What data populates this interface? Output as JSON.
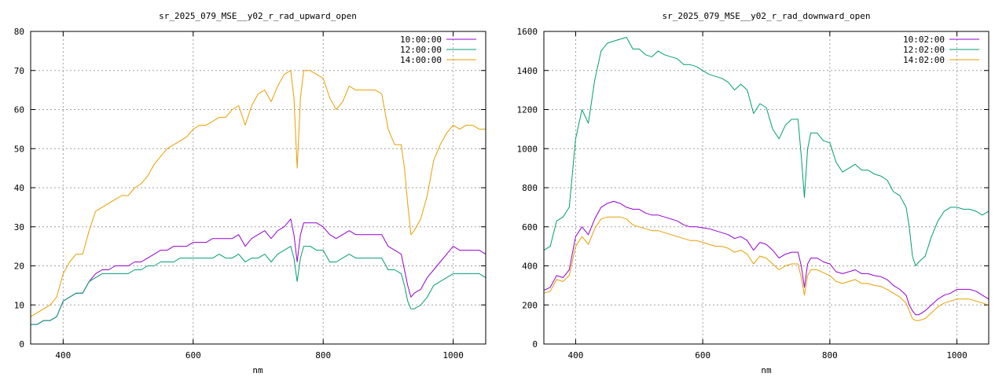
{
  "chart_data": [
    {
      "type": "line",
      "title": "sr_2025_079_MSE__y02_r_rad_upward_open",
      "xlabel": "nm",
      "ylabel": "",
      "xlim": [
        350,
        1050
      ],
      "ylim": [
        0,
        80
      ],
      "xticks": [
        "400",
        "600",
        "800",
        "1000"
      ],
      "yticks": [
        "0",
        "10",
        "20",
        "30",
        "40",
        "50",
        "60",
        "70",
        "80"
      ],
      "grid": true,
      "legend_position": "top-right",
      "series": [
        {
          "name": "10:00:00",
          "color": "#9400d3",
          "x": [
            350,
            360,
            370,
            380,
            390,
            400,
            410,
            420,
            430,
            440,
            450,
            460,
            470,
            480,
            490,
            500,
            510,
            520,
            530,
            540,
            550,
            560,
            570,
            580,
            590,
            600,
            610,
            620,
            630,
            640,
            650,
            660,
            670,
            680,
            690,
            700,
            710,
            720,
            730,
            740,
            750,
            755,
            760,
            765,
            770,
            780,
            790,
            800,
            810,
            820,
            830,
            840,
            850,
            860,
            870,
            880,
            890,
            900,
            910,
            920,
            925,
            930,
            935,
            940,
            950,
            960,
            970,
            980,
            990,
            1000,
            1010,
            1020,
            1030,
            1040,
            1050
          ],
          "values": [
            5,
            5,
            6,
            6,
            7,
            11,
            12,
            13,
            13,
            16,
            18,
            19,
            19,
            20,
            20,
            20,
            21,
            21,
            22,
            23,
            24,
            24,
            25,
            25,
            25,
            26,
            26,
            26,
            27,
            27,
            27,
            27,
            28,
            25,
            27,
            28,
            29,
            27,
            29,
            30,
            32,
            28,
            21,
            28,
            31,
            31,
            31,
            30,
            28,
            27,
            28,
            29,
            28,
            28,
            28,
            28,
            28,
            25,
            24,
            23,
            19,
            15,
            12,
            13,
            14,
            17,
            19,
            21,
            23,
            25,
            24,
            24,
            24,
            24,
            23
          ]
        },
        {
          "name": "12:00:00",
          "color": "#009e73",
          "x": [
            350,
            360,
            370,
            380,
            390,
            400,
            410,
            420,
            430,
            440,
            450,
            460,
            470,
            480,
            490,
            500,
            510,
            520,
            530,
            540,
            550,
            560,
            570,
            580,
            590,
            600,
            610,
            620,
            630,
            640,
            650,
            660,
            670,
            680,
            690,
            700,
            710,
            720,
            730,
            740,
            750,
            755,
            760,
            765,
            770,
            780,
            790,
            800,
            810,
            820,
            830,
            840,
            850,
            860,
            870,
            880,
            890,
            900,
            910,
            920,
            925,
            930,
            935,
            940,
            950,
            960,
            970,
            980,
            990,
            1000,
            1010,
            1020,
            1030,
            1040,
            1050
          ],
          "values": [
            5,
            5,
            6,
            6,
            7,
            11,
            12,
            13,
            13,
            16,
            17,
            18,
            18,
            18,
            18,
            18,
            19,
            19,
            20,
            20,
            21,
            21,
            21,
            22,
            22,
            22,
            22,
            22,
            22,
            23,
            22,
            22,
            23,
            21,
            22,
            22,
            23,
            21,
            23,
            24,
            25,
            22,
            16,
            22,
            25,
            25,
            24,
            24,
            21,
            21,
            22,
            23,
            22,
            22,
            22,
            22,
            22,
            19,
            19,
            18,
            15,
            11,
            9,
            9,
            10,
            12,
            15,
            16,
            17,
            18,
            18,
            18,
            18,
            18,
            17
          ]
        },
        {
          "name": "14:00:00",
          "color": "#e69f00",
          "x": [
            350,
            360,
            370,
            380,
            390,
            400,
            410,
            420,
            430,
            440,
            450,
            460,
            470,
            480,
            490,
            500,
            510,
            520,
            530,
            540,
            550,
            560,
            570,
            580,
            590,
            600,
            610,
            620,
            630,
            640,
            650,
            660,
            670,
            680,
            690,
            700,
            710,
            720,
            730,
            740,
            750,
            755,
            760,
            765,
            770,
            780,
            790,
            800,
            810,
            820,
            830,
            840,
            850,
            860,
            870,
            880,
            890,
            900,
            910,
            920,
            925,
            930,
            935,
            940,
            950,
            960,
            970,
            980,
            990,
            1000,
            1010,
            1020,
            1030,
            1040,
            1050
          ],
          "values": [
            7,
            8,
            9,
            10,
            12,
            18,
            21,
            23,
            23,
            29,
            34,
            35,
            36,
            37,
            38,
            38,
            40,
            41,
            43,
            46,
            48,
            50,
            51,
            52,
            53,
            55,
            56,
            56,
            57,
            58,
            58,
            60,
            61,
            56,
            61,
            64,
            65,
            62,
            66,
            69,
            70,
            63,
            45,
            63,
            70,
            70,
            69,
            68,
            63,
            60,
            62,
            66,
            65,
            65,
            65,
            65,
            64,
            55,
            51,
            51,
            45,
            36,
            28,
            29,
            32,
            38,
            47,
            51,
            54,
            56,
            55,
            56,
            56,
            55,
            55
          ]
        }
      ]
    },
    {
      "type": "line",
      "title": "sr_2025_079_MSE__y02_r_rad_downward_open",
      "xlabel": "nm",
      "ylabel": "",
      "xlim": [
        350,
        1050
      ],
      "ylim": [
        0,
        1600
      ],
      "xticks": [
        "400",
        "600",
        "800",
        "1000"
      ],
      "yticks": [
        "0",
        "200",
        "400",
        "600",
        "800",
        "1000",
        "1200",
        "1400",
        "1600"
      ],
      "grid": true,
      "legend_position": "top-right",
      "series": [
        {
          "name": "10:02:00",
          "color": "#9400d3",
          "x": [
            350,
            360,
            370,
            380,
            390,
            400,
            410,
            420,
            430,
            440,
            450,
            460,
            470,
            480,
            490,
            500,
            510,
            520,
            530,
            540,
            550,
            560,
            570,
            580,
            590,
            600,
            610,
            620,
            630,
            640,
            650,
            660,
            670,
            680,
            690,
            700,
            710,
            720,
            730,
            740,
            750,
            755,
            760,
            765,
            770,
            780,
            790,
            800,
            810,
            820,
            830,
            840,
            850,
            860,
            870,
            880,
            890,
            900,
            910,
            920,
            925,
            930,
            935,
            940,
            950,
            960,
            970,
            980,
            990,
            1000,
            1010,
            1020,
            1030,
            1040,
            1050
          ],
          "values": [
            275,
            290,
            350,
            340,
            380,
            550,
            600,
            560,
            640,
            700,
            720,
            730,
            720,
            700,
            690,
            690,
            670,
            660,
            660,
            650,
            640,
            630,
            610,
            600,
            600,
            595,
            590,
            580,
            570,
            560,
            540,
            550,
            530,
            480,
            520,
            510,
            480,
            440,
            460,
            470,
            470,
            400,
            290,
            410,
            440,
            440,
            420,
            410,
            370,
            360,
            370,
            380,
            360,
            360,
            350,
            345,
            330,
            300,
            280,
            250,
            200,
            170,
            150,
            150,
            170,
            200,
            230,
            250,
            260,
            280,
            280,
            280,
            270,
            250,
            230
          ]
        },
        {
          "name": "12:02:00",
          "color": "#009e73",
          "x": [
            350,
            360,
            370,
            380,
            390,
            400,
            410,
            420,
            430,
            440,
            450,
            460,
            470,
            480,
            490,
            500,
            510,
            520,
            530,
            540,
            550,
            560,
            570,
            580,
            590,
            600,
            610,
            620,
            630,
            640,
            650,
            660,
            670,
            680,
            690,
            700,
            710,
            720,
            730,
            740,
            750,
            755,
            760,
            765,
            770,
            780,
            790,
            800,
            810,
            820,
            830,
            840,
            850,
            860,
            870,
            880,
            890,
            900,
            910,
            920,
            925,
            930,
            935,
            940,
            950,
            960,
            970,
            980,
            990,
            1000,
            1010,
            1020,
            1030,
            1040,
            1050
          ],
          "values": [
            480,
            500,
            630,
            650,
            700,
            1050,
            1200,
            1130,
            1350,
            1500,
            1540,
            1550,
            1560,
            1570,
            1510,
            1510,
            1480,
            1470,
            1500,
            1480,
            1470,
            1460,
            1430,
            1430,
            1420,
            1400,
            1380,
            1370,
            1360,
            1340,
            1300,
            1330,
            1300,
            1180,
            1230,
            1210,
            1100,
            1050,
            1120,
            1150,
            1150,
            960,
            750,
            1000,
            1080,
            1080,
            1040,
            1030,
            930,
            880,
            900,
            920,
            890,
            890,
            870,
            860,
            840,
            780,
            760,
            700,
            600,
            450,
            400,
            420,
            450,
            550,
            630,
            680,
            700,
            700,
            690,
            690,
            680,
            660,
            680
          ]
        },
        {
          "name": "14:02:00",
          "color": "#e69f00",
          "x": [
            350,
            360,
            370,
            380,
            390,
            400,
            410,
            420,
            430,
            440,
            450,
            460,
            470,
            480,
            490,
            500,
            510,
            520,
            530,
            540,
            550,
            560,
            570,
            580,
            590,
            600,
            610,
            620,
            630,
            640,
            650,
            660,
            670,
            680,
            690,
            700,
            710,
            720,
            730,
            740,
            750,
            755,
            760,
            765,
            770,
            780,
            790,
            800,
            810,
            820,
            830,
            840,
            850,
            860,
            870,
            880,
            890,
            900,
            910,
            920,
            925,
            930,
            935,
            940,
            950,
            960,
            970,
            980,
            990,
            1000,
            1010,
            1020,
            1030,
            1040,
            1050
          ],
          "values": [
            260,
            270,
            330,
            320,
            350,
            500,
            550,
            510,
            590,
            640,
            650,
            650,
            650,
            640,
            610,
            600,
            590,
            580,
            580,
            570,
            560,
            550,
            540,
            530,
            530,
            520,
            510,
            500,
            500,
            490,
            470,
            480,
            460,
            410,
            450,
            440,
            410,
            380,
            400,
            410,
            410,
            340,
            250,
            350,
            380,
            380,
            365,
            350,
            320,
            310,
            320,
            330,
            310,
            310,
            300,
            295,
            280,
            260,
            240,
            210,
            170,
            130,
            120,
            120,
            130,
            160,
            190,
            210,
            220,
            230,
            230,
            230,
            220,
            210,
            200
          ]
        }
      ]
    }
  ]
}
